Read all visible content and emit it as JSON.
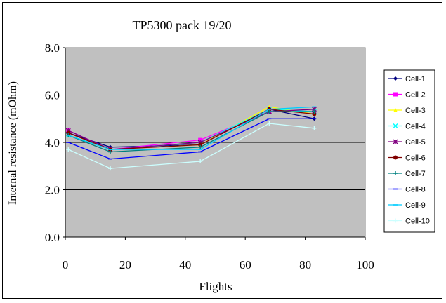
{
  "chart_data": {
    "type": "line",
    "title": "TP5300 pack 19/20",
    "xlabel": "Flights",
    "ylabel": "Internal resistance (mOhm)",
    "xlim": [
      0,
      100
    ],
    "ylim": [
      0.0,
      8.0
    ],
    "x_ticks": [
      "0",
      "20",
      "40",
      "60",
      "80",
      "100"
    ],
    "y_ticks": [
      "0.0",
      "2.0",
      "4.0",
      "6.0",
      "8.0"
    ],
    "grid": "horizontal",
    "legend_position": "right",
    "plot_background": "#c0c0c0",
    "x": [
      1,
      15,
      45,
      68,
      83
    ],
    "series": [
      {
        "name": "Cell-1",
        "color": "#000080",
        "marker": "diamond",
        "values": [
          4.4,
          3.8,
          3.9,
          5.4,
          5.0
        ]
      },
      {
        "name": "Cell-2",
        "color": "#ff00ff",
        "marker": "square",
        "values": [
          4.5,
          3.7,
          4.1,
          5.3,
          5.3
        ]
      },
      {
        "name": "Cell-3",
        "color": "#ffff00",
        "marker": "triangle",
        "values": [
          4.3,
          3.7,
          3.9,
          5.5,
          5.2
        ]
      },
      {
        "name": "Cell-4",
        "color": "#00ffff",
        "marker": "x",
        "values": [
          4.3,
          3.7,
          4.0,
          5.4,
          5.3
        ]
      },
      {
        "name": "Cell-5",
        "color": "#800080",
        "marker": "star",
        "values": [
          4.5,
          3.7,
          4.0,
          5.3,
          5.4
        ]
      },
      {
        "name": "Cell-6",
        "color": "#800000",
        "marker": "circle",
        "values": [
          4.4,
          3.7,
          3.9,
          5.4,
          5.2
        ]
      },
      {
        "name": "Cell-7",
        "color": "#008080",
        "marker": "plus",
        "values": [
          4.3,
          3.6,
          3.8,
          5.3,
          5.3
        ]
      },
      {
        "name": "Cell-8",
        "color": "#0000ff",
        "marker": "dash",
        "values": [
          4.0,
          3.3,
          3.6,
          5.0,
          5.0
        ]
      },
      {
        "name": "Cell-9",
        "color": "#00ccff",
        "marker": "dash",
        "values": [
          4.3,
          3.7,
          3.7,
          5.4,
          5.5
        ]
      },
      {
        "name": "Cell-10",
        "color": "#ccffff",
        "marker": "plus",
        "values": [
          3.7,
          2.9,
          3.2,
          4.8,
          4.6
        ]
      }
    ]
  }
}
